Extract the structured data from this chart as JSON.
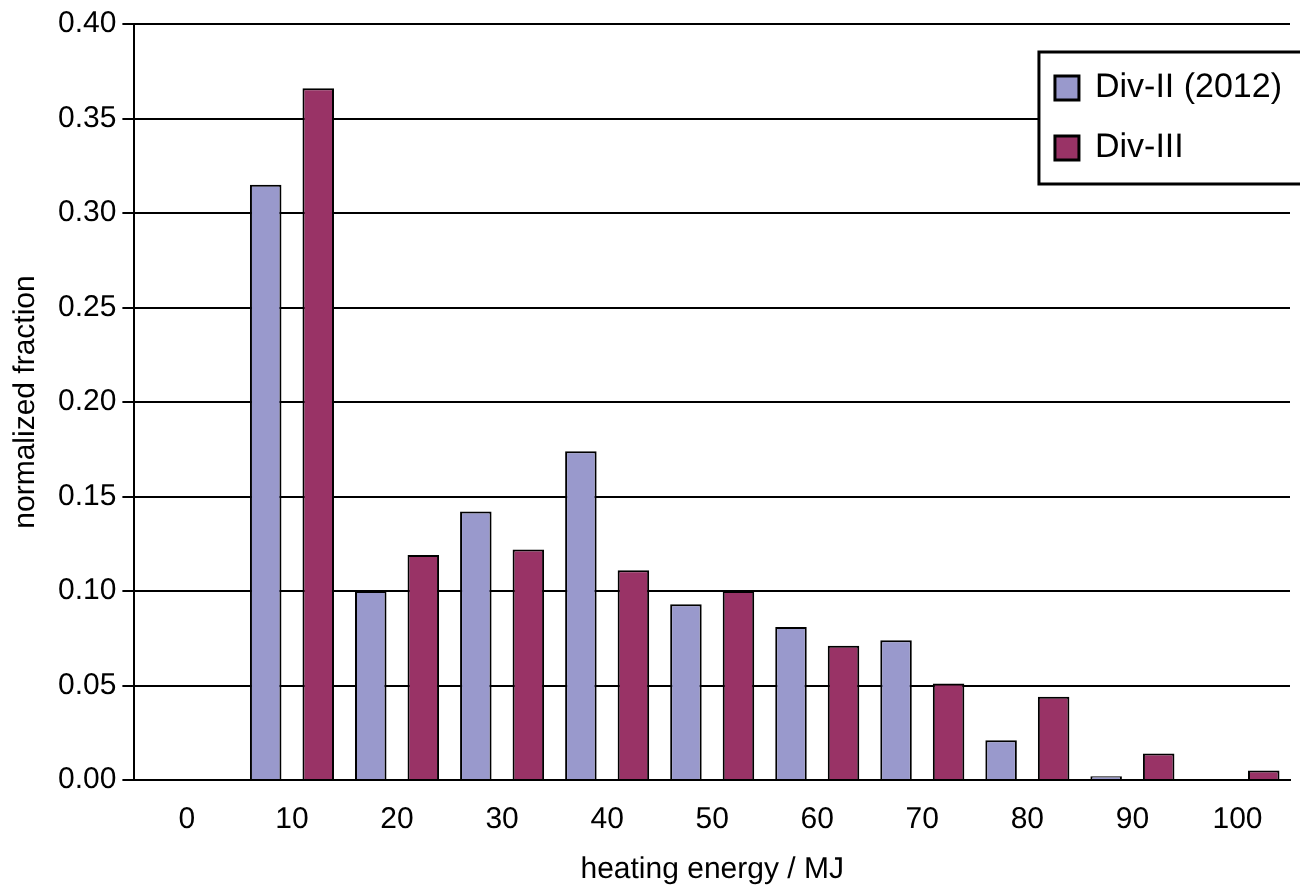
{
  "chart_data": {
    "type": "bar",
    "xlabel": "heating energy / MJ",
    "ylabel": "normalized fraction",
    "categories": [
      "0",
      "10",
      "20",
      "30",
      "40",
      "50",
      "60",
      "70",
      "80",
      "90",
      "100"
    ],
    "series": [
      {
        "name": "Div-II (2012)",
        "color": "#9999cc",
        "values": [
          0,
          0.315,
          0.1,
          0.142,
          0.174,
          0.093,
          0.081,
          0.074,
          0.021,
          0.002,
          0
        ]
      },
      {
        "name": "Div-III",
        "color": "#993366",
        "values": [
          0,
          0.366,
          0.119,
          0.122,
          0.111,
          0.1,
          0.071,
          0.051,
          0.044,
          0.014,
          0.005
        ]
      }
    ],
    "ylim": [
      0,
      0.4
    ],
    "yticks": [
      {
        "value": 0,
        "label": "0.00"
      },
      {
        "value": 0.05,
        "label": "0.05"
      },
      {
        "value": 0.1,
        "label": "0.10"
      },
      {
        "value": 0.15,
        "label": "0.15"
      },
      {
        "value": 0.2,
        "label": "0.20"
      },
      {
        "value": 0.25,
        "label": "0.25"
      },
      {
        "value": 0.3,
        "label": "0.30"
      },
      {
        "value": 0.35,
        "label": "0.35"
      },
      {
        "value": 0.4,
        "label": "0.40"
      }
    ],
    "grid": "y",
    "legend": "top right"
  }
}
